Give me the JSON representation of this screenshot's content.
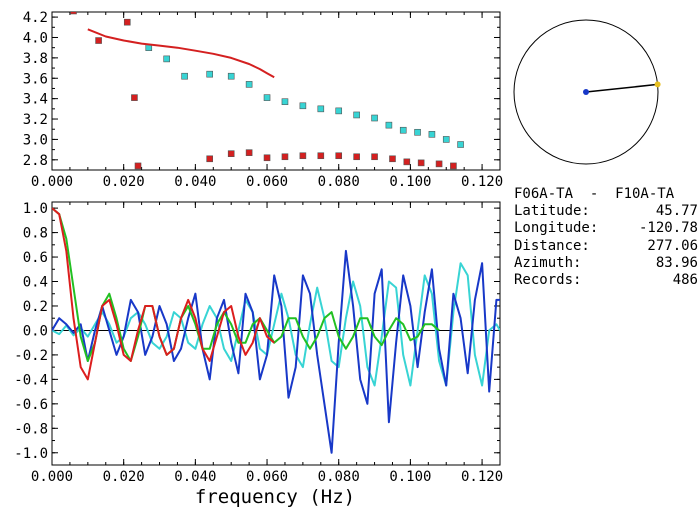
{
  "info": {
    "station_pair": "F06A-TA  -  F10A-TA",
    "rows": [
      {
        "label": "Latitude:",
        "value": "45.77"
      },
      {
        "label": "Longitude:",
        "value": "-120.78"
      },
      {
        "label": "Distance:",
        "value": "277.06"
      },
      {
        "label": "Azimuth:",
        "value": "83.96"
      },
      {
        "label": "Records:",
        "value": "486"
      }
    ]
  },
  "xlabel": "frequency (Hz)",
  "chart_data": [
    {
      "type": "scatter",
      "title": "",
      "xlabel": "",
      "ylabel": "",
      "xlim": [
        0.0,
        0.125
      ],
      "ylim": [
        2.7,
        4.25
      ],
      "xticks": [
        "0.000",
        "0.020",
        "0.040",
        "0.060",
        "0.080",
        "0.100",
        "0.120"
      ],
      "xtick_values": [
        0.0,
        0.02,
        0.04,
        0.06,
        0.08,
        0.1,
        0.12
      ],
      "yticks": [
        "2.8",
        "3.0",
        "3.2",
        "3.4",
        "3.6",
        "3.8",
        "4.0",
        "4.2"
      ],
      "ytick_values": [
        2.8,
        3.0,
        3.2,
        3.4,
        3.6,
        3.8,
        4.0,
        4.2
      ],
      "series": [
        {
          "kind": "points",
          "color": "#d42020",
          "x": [
            0.006,
            0.013,
            0.021,
            0.023,
            0.024,
            0.044,
            0.05,
            0.055,
            0.06,
            0.065,
            0.07,
            0.075,
            0.08,
            0.085,
            0.09,
            0.095,
            0.099,
            0.103,
            0.108,
            0.112
          ],
          "y": [
            4.26,
            3.97,
            4.15,
            3.41,
            2.74,
            2.81,
            2.86,
            2.87,
            2.82,
            2.83,
            2.84,
            2.84,
            2.84,
            2.83,
            2.83,
            2.81,
            2.78,
            2.77,
            2.76,
            2.74
          ]
        },
        {
          "kind": "points",
          "color": "#38d4d4",
          "x": [
            0.027,
            0.032,
            0.037,
            0.044,
            0.05,
            0.055,
            0.06,
            0.065,
            0.07,
            0.075,
            0.08,
            0.085,
            0.09,
            0.094,
            0.098,
            0.102,
            0.106,
            0.11,
            0.114
          ],
          "y": [
            3.9,
            3.79,
            3.62,
            3.64,
            3.62,
            3.54,
            3.41,
            3.37,
            3.33,
            3.3,
            3.28,
            3.24,
            3.21,
            3.14,
            3.09,
            3.07,
            3.05,
            3.0,
            2.95
          ]
        },
        {
          "kind": "line",
          "color": "#d42020",
          "x": [
            0.01,
            0.015,
            0.02,
            0.025,
            0.03,
            0.035,
            0.04,
            0.045,
            0.05,
            0.055,
            0.058,
            0.06,
            0.062
          ],
          "y": [
            4.08,
            4.01,
            3.97,
            3.94,
            3.92,
            3.9,
            3.87,
            3.84,
            3.8,
            3.74,
            3.69,
            3.65,
            3.61
          ]
        }
      ]
    },
    {
      "type": "line",
      "title": "",
      "xlabel": "frequency (Hz)",
      "ylabel": "",
      "xlim": [
        0.0,
        0.125
      ],
      "ylim": [
        -1.1,
        1.05
      ],
      "xticks": [
        "0.000",
        "0.020",
        "0.040",
        "0.060",
        "0.080",
        "0.100",
        "0.120"
      ],
      "xtick_values": [
        0.0,
        0.02,
        0.04,
        0.06,
        0.08,
        0.1,
        0.12
      ],
      "yticks": [
        "-1.0",
        "-0.8",
        "-0.6",
        "-0.4",
        "-0.2",
        "0.0",
        "0.2",
        "0.4",
        "0.6",
        "0.8",
        "1.0"
      ],
      "ytick_values": [
        -1.0,
        -0.8,
        -0.6,
        -0.4,
        -0.2,
        0.0,
        0.2,
        0.4,
        0.6,
        0.8,
        1.0
      ],
      "zero_line": true,
      "series": [
        {
          "color": "#38d4d4",
          "x": [
            0.0,
            0.002,
            0.004,
            0.006,
            0.008,
            0.01,
            0.012,
            0.014,
            0.016,
            0.018,
            0.02,
            0.022,
            0.024,
            0.026,
            0.028,
            0.03,
            0.032,
            0.034,
            0.036,
            0.038,
            0.04,
            0.042,
            0.044,
            0.046,
            0.048,
            0.05,
            0.052,
            0.054,
            0.056,
            0.058,
            0.06,
            0.062,
            0.064,
            0.066,
            0.068,
            0.07,
            0.072,
            0.074,
            0.076,
            0.078,
            0.08,
            0.082,
            0.084,
            0.086,
            0.088,
            0.09,
            0.092,
            0.094,
            0.096,
            0.098,
            0.1,
            0.102,
            0.104,
            0.106,
            0.108,
            0.11,
            0.112,
            0.114,
            0.116,
            0.118,
            0.12,
            0.122,
            0.124,
            0.125
          ],
          "y": [
            0.0,
            -0.03,
            0.04,
            -0.04,
            0.02,
            -0.05,
            0.05,
            0.15,
            0.05,
            -0.1,
            -0.05,
            0.1,
            0.15,
            0.05,
            -0.1,
            -0.15,
            -0.05,
            0.15,
            0.1,
            -0.1,
            -0.15,
            0.05,
            0.2,
            0.1,
            -0.15,
            -0.25,
            0.0,
            0.25,
            0.15,
            -0.15,
            -0.2,
            0.05,
            0.3,
            0.1,
            -0.2,
            -0.3,
            0.05,
            0.35,
            0.1,
            -0.25,
            -0.3,
            0.1,
            0.4,
            0.2,
            -0.3,
            -0.45,
            -0.05,
            0.4,
            0.35,
            -0.2,
            -0.45,
            0.0,
            0.45,
            0.3,
            -0.25,
            -0.45,
            0.15,
            0.55,
            0.45,
            -0.2,
            -0.45,
            0.0,
            0.05,
            0.0
          ]
        },
        {
          "color": "#1838c8",
          "x": [
            0.0,
            0.002,
            0.004,
            0.006,
            0.008,
            0.01,
            0.012,
            0.014,
            0.016,
            0.018,
            0.02,
            0.022,
            0.024,
            0.026,
            0.028,
            0.03,
            0.032,
            0.034,
            0.036,
            0.038,
            0.04,
            0.042,
            0.044,
            0.046,
            0.048,
            0.05,
            0.052,
            0.054,
            0.056,
            0.058,
            0.06,
            0.062,
            0.064,
            0.066,
            0.068,
            0.07,
            0.072,
            0.074,
            0.076,
            0.078,
            0.08,
            0.082,
            0.084,
            0.086,
            0.088,
            0.09,
            0.092,
            0.094,
            0.096,
            0.098,
            0.1,
            0.102,
            0.104,
            0.106,
            0.108,
            0.11,
            0.112,
            0.114,
            0.116,
            0.118,
            0.12,
            0.122,
            0.124,
            0.125
          ],
          "y": [
            0.0,
            0.1,
            0.05,
            -0.02,
            0.05,
            -0.25,
            0.0,
            0.2,
            0.0,
            -0.2,
            -0.05,
            0.25,
            0.15,
            -0.2,
            -0.05,
            0.2,
            0.05,
            -0.25,
            -0.15,
            0.1,
            0.3,
            -0.15,
            -0.4,
            0.1,
            0.25,
            -0.1,
            -0.35,
            0.3,
            0.15,
            -0.4,
            -0.2,
            0.45,
            0.2,
            -0.55,
            -0.3,
            0.45,
            0.3,
            -0.2,
            -0.6,
            -1.0,
            -0.1,
            0.65,
            0.2,
            -0.4,
            -0.6,
            0.3,
            0.5,
            -0.75,
            -0.1,
            0.45,
            0.2,
            -0.3,
            0.15,
            0.5,
            -0.15,
            -0.45,
            0.3,
            0.1,
            -0.35,
            0.25,
            0.55,
            -0.5,
            0.25,
            0.25
          ]
        },
        {
          "color": "#22c022",
          "x": [
            0.0,
            0.002,
            0.004,
            0.006,
            0.008,
            0.01,
            0.012,
            0.014,
            0.016,
            0.018,
            0.02,
            0.022,
            0.024,
            0.026,
            0.028,
            0.03,
            0.032,
            0.034,
            0.036,
            0.038,
            0.04,
            0.042,
            0.044,
            0.046,
            0.048,
            0.05,
            0.052,
            0.054,
            0.056,
            0.058,
            0.06,
            0.062,
            0.064,
            0.066,
            0.068,
            0.07,
            0.072,
            0.074,
            0.076,
            0.078,
            0.08,
            0.082,
            0.084,
            0.086,
            0.088,
            0.09,
            0.092,
            0.094,
            0.096,
            0.098,
            0.1,
            0.102,
            0.104,
            0.106,
            0.108
          ],
          "y": [
            1.0,
            0.95,
            0.75,
            0.35,
            -0.05,
            -0.25,
            -0.1,
            0.2,
            0.3,
            0.1,
            -0.15,
            -0.25,
            -0.05,
            0.2,
            0.2,
            -0.05,
            -0.2,
            -0.15,
            0.1,
            0.2,
            0.05,
            -0.15,
            -0.15,
            0.05,
            0.15,
            0.05,
            -0.1,
            -0.1,
            0.05,
            0.1,
            0.0,
            -0.1,
            -0.05,
            0.1,
            0.1,
            -0.05,
            -0.15,
            -0.05,
            0.1,
            0.15,
            -0.05,
            -0.15,
            -0.05,
            0.1,
            0.1,
            -0.05,
            -0.12,
            0.0,
            0.1,
            0.05,
            -0.08,
            -0.05,
            0.05,
            0.05,
            0.0
          ]
        },
        {
          "color": "#dc1e1e",
          "x": [
            0.0,
            0.002,
            0.004,
            0.006,
            0.008,
            0.01,
            0.012,
            0.014,
            0.016,
            0.018,
            0.02,
            0.022,
            0.024,
            0.026,
            0.028,
            0.03,
            0.032,
            0.034,
            0.036,
            0.038,
            0.04,
            0.042,
            0.044,
            0.046,
            0.048,
            0.05,
            0.052,
            0.054,
            0.056,
            0.058,
            0.06,
            0.062
          ],
          "y": [
            1.0,
            0.95,
            0.65,
            0.1,
            -0.3,
            -0.4,
            -0.1,
            0.2,
            0.25,
            0.05,
            -0.2,
            -0.25,
            0.0,
            0.2,
            0.2,
            -0.05,
            -0.2,
            -0.15,
            0.1,
            0.25,
            0.1,
            -0.15,
            -0.25,
            -0.05,
            0.15,
            0.2,
            -0.05,
            -0.2,
            -0.1,
            0.1,
            -0.05,
            -0.1
          ]
        }
      ]
    }
  ],
  "compass": {
    "azimuth_deg": 83.96,
    "circle_color": "#000000",
    "line_color": "#000000",
    "center_color": "#1838c8",
    "end_color": "#e8c020"
  }
}
